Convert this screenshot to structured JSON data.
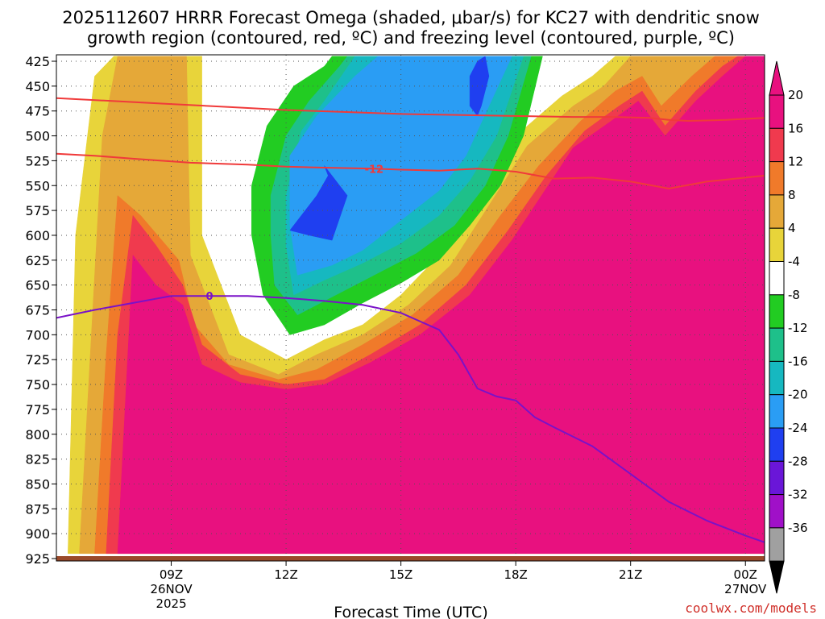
{
  "chart_data": {
    "type": "time-height cross section",
    "title_line1": "2025112607 HRRR Forecast Omega (shaded, μbar/s) for KC27 with dendritic snow",
    "title_line2": "growth region (contoured, red, ºC) and freezing level (contoured, purple, ºC)",
    "xlabel": "Forecast Time (UTC)",
    "credit": "coolwx.com/models",
    "x_range_hours": [
      6.0,
      24.5
    ],
    "y_range_hpa": [
      925,
      420
    ],
    "y_ticks": [
      "425",
      "450",
      "475",
      "500",
      "525",
      "550",
      "575",
      "600",
      "625",
      "650",
      "675",
      "700",
      "725",
      "750",
      "775",
      "800",
      "825",
      "850",
      "875",
      "900",
      "925"
    ],
    "x_ticks": [
      {
        "hour": 9,
        "label": "09Z",
        "sub1": "26NOV",
        "sub2": "2025"
      },
      {
        "hour": 12,
        "label": "12Z",
        "sub1": "",
        "sub2": ""
      },
      {
        "hour": 15,
        "label": "15Z",
        "sub1": "",
        "sub2": ""
      },
      {
        "hour": 18,
        "label": "18Z",
        "sub1": "",
        "sub2": ""
      },
      {
        "hour": 21,
        "label": "21Z",
        "sub1": "",
        "sub2": ""
      },
      {
        "hour": 24,
        "label": "00Z",
        "sub1": "27NOV",
        "sub2": ""
      }
    ],
    "colorbar": {
      "labels": [
        "20",
        "16",
        "12",
        "8",
        "4",
        "-4",
        "-8",
        "-12",
        "-16",
        "-20",
        "-24",
        "-28",
        "-32",
        "-36"
      ],
      "colors": [
        "#e8117f",
        "#f03a4e",
        "#f07a2a",
        "#e5a838",
        "#e8d43a",
        "#ffffff",
        "#22cc22",
        "#1ec08a",
        "#16b8c0",
        "#2a9df4",
        "#1f3ff0",
        "#6a16d8",
        "#a010c8",
        "#a0a0a0"
      ]
    },
    "omega_fields": [
      {
        "level": "4",
        "color": "#e8d43a",
        "polygon": [
          [
            6.3,
            920
          ],
          [
            6.5,
            600
          ],
          [
            7,
            440
          ],
          [
            7.5,
            420
          ],
          [
            9.8,
            420
          ],
          [
            9.8,
            600
          ],
          [
            10.8,
            700
          ],
          [
            12,
            725
          ],
          [
            13,
            705
          ],
          [
            14,
            690
          ],
          [
            15,
            660
          ],
          [
            16,
            620
          ],
          [
            17,
            560
          ],
          [
            18,
            500
          ],
          [
            19.2,
            460
          ],
          [
            20,
            440
          ],
          [
            20.6,
            420
          ],
          [
            24.5,
            420
          ],
          [
            24.5,
            920
          ],
          [
            6.3,
            920
          ]
        ]
      },
      {
        "level": "8",
        "color": "#e5a838",
        "polygon": [
          [
            6.6,
            920
          ],
          [
            7,
            640
          ],
          [
            7.2,
            500
          ],
          [
            7.6,
            420
          ],
          [
            9.4,
            420
          ],
          [
            9.5,
            620
          ],
          [
            10.5,
            720
          ],
          [
            11.8,
            740
          ],
          [
            12.8,
            720
          ],
          [
            14,
            700
          ],
          [
            15.2,
            670
          ],
          [
            16.3,
            630
          ],
          [
            17.3,
            570
          ],
          [
            18.3,
            510
          ],
          [
            19.5,
            470
          ],
          [
            20.3,
            450
          ],
          [
            21,
            420
          ],
          [
            24.5,
            420
          ],
          [
            24.5,
            920
          ],
          [
            6.6,
            920
          ]
        ]
      },
      {
        "level": "12",
        "color": "#f07a2a",
        "polygon": [
          [
            7,
            920
          ],
          [
            7.3,
            720
          ],
          [
            7.6,
            560
          ],
          [
            8.2,
            580
          ],
          [
            9.2,
            625
          ],
          [
            9.6,
            690
          ],
          [
            10.5,
            730
          ],
          [
            11.8,
            745
          ],
          [
            12.8,
            735
          ],
          [
            14,
            710
          ],
          [
            15.3,
            680
          ],
          [
            16.5,
            640
          ],
          [
            17.6,
            580
          ],
          [
            18.6,
            530
          ],
          [
            19.7,
            485
          ],
          [
            20.6,
            455
          ],
          [
            21.3,
            440
          ],
          [
            21.8,
            470
          ],
          [
            22.6,
            440
          ],
          [
            23.2,
            420
          ],
          [
            24.5,
            420
          ],
          [
            24.5,
            920
          ],
          [
            7,
            920
          ]
        ]
      },
      {
        "level": "16",
        "color": "#f03a4e",
        "polygon": [
          [
            7.3,
            920
          ],
          [
            7.6,
            700
          ],
          [
            8,
            580
          ],
          [
            8.6,
            610
          ],
          [
            9.3,
            650
          ],
          [
            9.8,
            710
          ],
          [
            10.8,
            740
          ],
          [
            12,
            750
          ],
          [
            13,
            745
          ],
          [
            14.2,
            720
          ],
          [
            15.5,
            690
          ],
          [
            16.7,
            650
          ],
          [
            17.8,
            595
          ],
          [
            18.8,
            540
          ],
          [
            19.8,
            495
          ],
          [
            20.7,
            470
          ],
          [
            21.3,
            455
          ],
          [
            21.9,
            490
          ],
          [
            22.7,
            455
          ],
          [
            23.4,
            430
          ],
          [
            23.8,
            420
          ],
          [
            24.5,
            420
          ],
          [
            24.5,
            920
          ],
          [
            7.3,
            920
          ]
        ]
      },
      {
        "level": "20",
        "color": "#e8117f",
        "polygon": [
          [
            7.6,
            920
          ],
          [
            8,
            620
          ],
          [
            8.6,
            650
          ],
          [
            9.3,
            670
          ],
          [
            9.8,
            730
          ],
          [
            10.8,
            748
          ],
          [
            12,
            755
          ],
          [
            13,
            750
          ],
          [
            14.2,
            728
          ],
          [
            15.5,
            700
          ],
          [
            16.8,
            660
          ],
          [
            17.9,
            605
          ],
          [
            19.5,
            512
          ],
          [
            20.5,
            485
          ],
          [
            21.2,
            465
          ],
          [
            21.9,
            500
          ],
          [
            22.7,
            465
          ],
          [
            23.4,
            440
          ],
          [
            24.0,
            420
          ],
          [
            24.5,
            420
          ],
          [
            24.5,
            920
          ],
          [
            7.6,
            920
          ]
        ]
      },
      {
        "level": "-4",
        "color": "#22cc22",
        "polygon": [
          [
            11.1,
            550
          ],
          [
            11.5,
            490
          ],
          [
            12.2,
            450
          ],
          [
            13,
            430
          ],
          [
            13.2,
            420
          ],
          [
            18.7,
            420
          ],
          [
            18.2,
            500
          ],
          [
            17.6,
            550
          ],
          [
            16.8,
            590
          ],
          [
            16,
            625
          ],
          [
            15,
            648
          ],
          [
            14,
            668
          ],
          [
            13,
            690
          ],
          [
            12.1,
            700
          ],
          [
            11.4,
            660
          ],
          [
            11.1,
            600
          ]
        ]
      },
      {
        "level": "-8",
        "color": "#1ec08a",
        "polygon": [
          [
            11.6,
            560
          ],
          [
            12,
            500
          ],
          [
            12.6,
            465
          ],
          [
            13.4,
            430
          ],
          [
            13.6,
            420
          ],
          [
            18.4,
            420
          ],
          [
            17.8,
            500
          ],
          [
            17.2,
            550
          ],
          [
            16.4,
            590
          ],
          [
            15.4,
            618
          ],
          [
            14.3,
            640
          ],
          [
            13.3,
            660
          ],
          [
            12.3,
            680
          ],
          [
            11.7,
            650
          ],
          [
            11.6,
            600
          ]
        ]
      },
      {
        "level": "-12",
        "color": "#16b8c0",
        "polygon": [
          [
            12,
            560
          ],
          [
            12.4,
            495
          ],
          [
            13,
            465
          ],
          [
            13.8,
            420
          ],
          [
            18.2,
            420
          ],
          [
            17.5,
            500
          ],
          [
            16.8,
            545
          ],
          [
            16,
            580
          ],
          [
            15,
            608
          ],
          [
            14,
            628
          ],
          [
            13,
            645
          ],
          [
            12.2,
            660
          ],
          [
            12,
            610
          ]
        ]
      },
      {
        "level": "-16",
        "color": "#2a9df4",
        "polygon": [
          [
            12.1,
            520
          ],
          [
            12.8,
            480
          ],
          [
            13.8,
            440
          ],
          [
            14.4,
            420
          ],
          [
            17.9,
            420
          ],
          [
            17.3,
            470
          ],
          [
            16.7,
            520
          ],
          [
            16,
            555
          ],
          [
            15,
            585
          ],
          [
            14,
            615
          ],
          [
            13.2,
            630
          ],
          [
            12.3,
            640
          ],
          [
            12.1,
            590
          ]
        ]
      },
      {
        "level": "-20",
        "color": "#1f3ff0",
        "polygon": [
          [
            12.1,
            595
          ],
          [
            12.8,
            560
          ],
          [
            13.1,
            540
          ],
          [
            13.0,
            530
          ],
          [
            13.6,
            560
          ],
          [
            13.2,
            605
          ],
          [
            12.6,
            600
          ]
        ]
      },
      {
        "level": "-20",
        "color": "#1f3ff0",
        "polygon": [
          [
            16.8,
            440
          ],
          [
            17.0,
            425
          ],
          [
            17.2,
            420
          ],
          [
            17.3,
            440
          ],
          [
            17.1,
            470
          ],
          [
            17.0,
            480
          ],
          [
            16.8,
            470
          ]
        ]
      }
    ],
    "contours": [
      {
        "name": "dgz-upper",
        "color": "#f03a3a",
        "label": "",
        "points": [
          [
            6.0,
            462
          ],
          [
            7.5,
            465
          ],
          [
            9,
            468
          ],
          [
            10.5,
            471
          ],
          [
            12,
            474
          ],
          [
            13.5,
            476
          ],
          [
            15,
            478
          ],
          [
            16.5,
            479
          ],
          [
            18,
            480
          ],
          [
            19.5,
            481
          ],
          [
            20.5,
            481
          ],
          [
            21.5,
            482
          ],
          [
            22,
            484
          ],
          [
            22.5,
            485
          ],
          [
            23.5,
            484
          ],
          [
            24.5,
            482
          ]
        ]
      },
      {
        "name": "dgz-lower",
        "color": "#f03a3a",
        "label": "-12",
        "label_hour": 14.3,
        "points": [
          [
            6.0,
            518
          ],
          [
            7,
            520
          ],
          [
            8,
            523
          ],
          [
            9.5,
            527
          ],
          [
            11,
            529
          ],
          [
            12,
            531
          ],
          [
            13,
            532
          ],
          [
            14.3,
            533
          ],
          [
            15,
            534
          ],
          [
            16,
            535
          ],
          [
            17,
            533
          ],
          [
            18,
            536
          ],
          [
            19,
            543
          ],
          [
            20,
            542
          ],
          [
            21,
            546
          ],
          [
            22,
            553
          ],
          [
            23,
            546
          ],
          [
            24.5,
            540
          ]
        ]
      },
      {
        "name": "freezing-level",
        "color": "#7a12c8",
        "label": "0",
        "label_hour": 10.0,
        "points": [
          [
            6.0,
            683
          ],
          [
            7,
            675
          ],
          [
            8,
            668
          ],
          [
            9,
            661
          ],
          [
            10,
            661
          ],
          [
            11,
            661
          ],
          [
            12,
            663
          ],
          [
            13,
            666
          ],
          [
            14,
            670
          ],
          [
            15,
            678
          ],
          [
            16,
            695
          ],
          [
            16.5,
            720
          ],
          [
            17,
            754
          ],
          [
            17.5,
            762
          ],
          [
            18,
            766
          ],
          [
            18.5,
            783
          ],
          [
            19,
            793
          ],
          [
            20,
            812
          ],
          [
            21,
            840
          ],
          [
            22,
            868
          ],
          [
            23,
            887
          ],
          [
            24,
            902
          ],
          [
            24.6,
            910
          ]
        ]
      }
    ]
  }
}
